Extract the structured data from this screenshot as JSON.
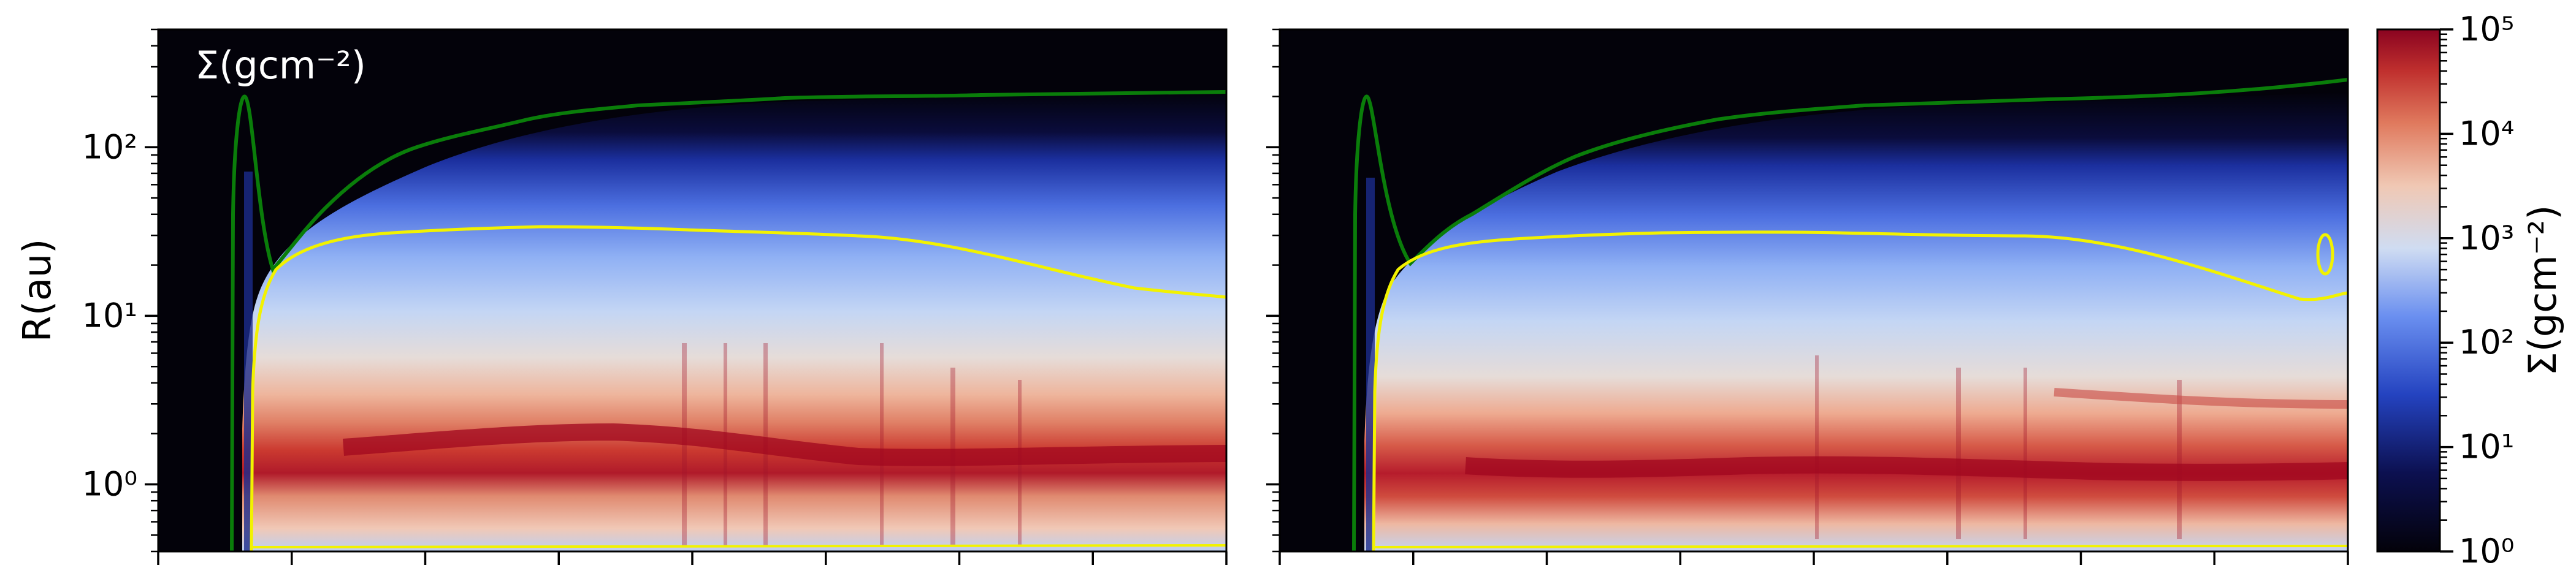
{
  "chart_data": [
    {
      "type": "heatmap",
      "panel": "left",
      "title": "Σ(gcm⁻²)",
      "ylabel": "R(au)",
      "xlabel": "",
      "yscale": "log",
      "ylim": [
        0.4,
        500
      ],
      "y_ticks": [
        {
          "value": 1,
          "label": "10⁰"
        },
        {
          "value": 10,
          "label": "10¹"
        },
        {
          "value": 100,
          "label": "10²"
        }
      ],
      "x_tick_labels_visible": false,
      "x_tick_count": 8,
      "contours": [
        {
          "color": "#0a7d0a",
          "description_level": "outer"
        },
        {
          "color": "#f2f200",
          "description_level": "inner"
        }
      ],
      "band_peak_R": 1.8,
      "band_R_range": [
        0.7,
        5
      ]
    },
    {
      "type": "heatmap",
      "panel": "right",
      "title": "",
      "ylabel": "",
      "xlabel": "",
      "yscale": "log",
      "ylim": [
        0.4,
        500
      ],
      "y_tick_labels_visible": false,
      "x_tick_labels_visible": false,
      "x_tick_count": 8,
      "contours": [
        {
          "color": "#0a7d0a"
        },
        {
          "color": "#f2f200"
        }
      ],
      "band_peak_R": 1.3,
      "band_R_range": [
        0.6,
        5
      ]
    }
  ],
  "colorbar": {
    "label": "Σ(gcm⁻²)",
    "scale": "log",
    "range": [
      1,
      100000
    ],
    "colormap": [
      "#03020a",
      "#1b2f9e",
      "#6a8ff0",
      "#cfdcf2",
      "#f0c8b4",
      "#e07a5e",
      "#8a0320"
    ],
    "ticks": [
      {
        "value": 1,
        "label": "10⁰"
      },
      {
        "value": 10,
        "label": "10¹"
      },
      {
        "value": 100,
        "label": "10²"
      },
      {
        "value": 1000,
        "label": "10³"
      },
      {
        "value": 10000,
        "label": "10⁴"
      },
      {
        "value": 100000,
        "label": "10⁵"
      }
    ]
  },
  "colors": {
    "contour_outer": "#0a7d0a",
    "contour_inner": "#f2f200",
    "background_empty": "#03020a"
  }
}
